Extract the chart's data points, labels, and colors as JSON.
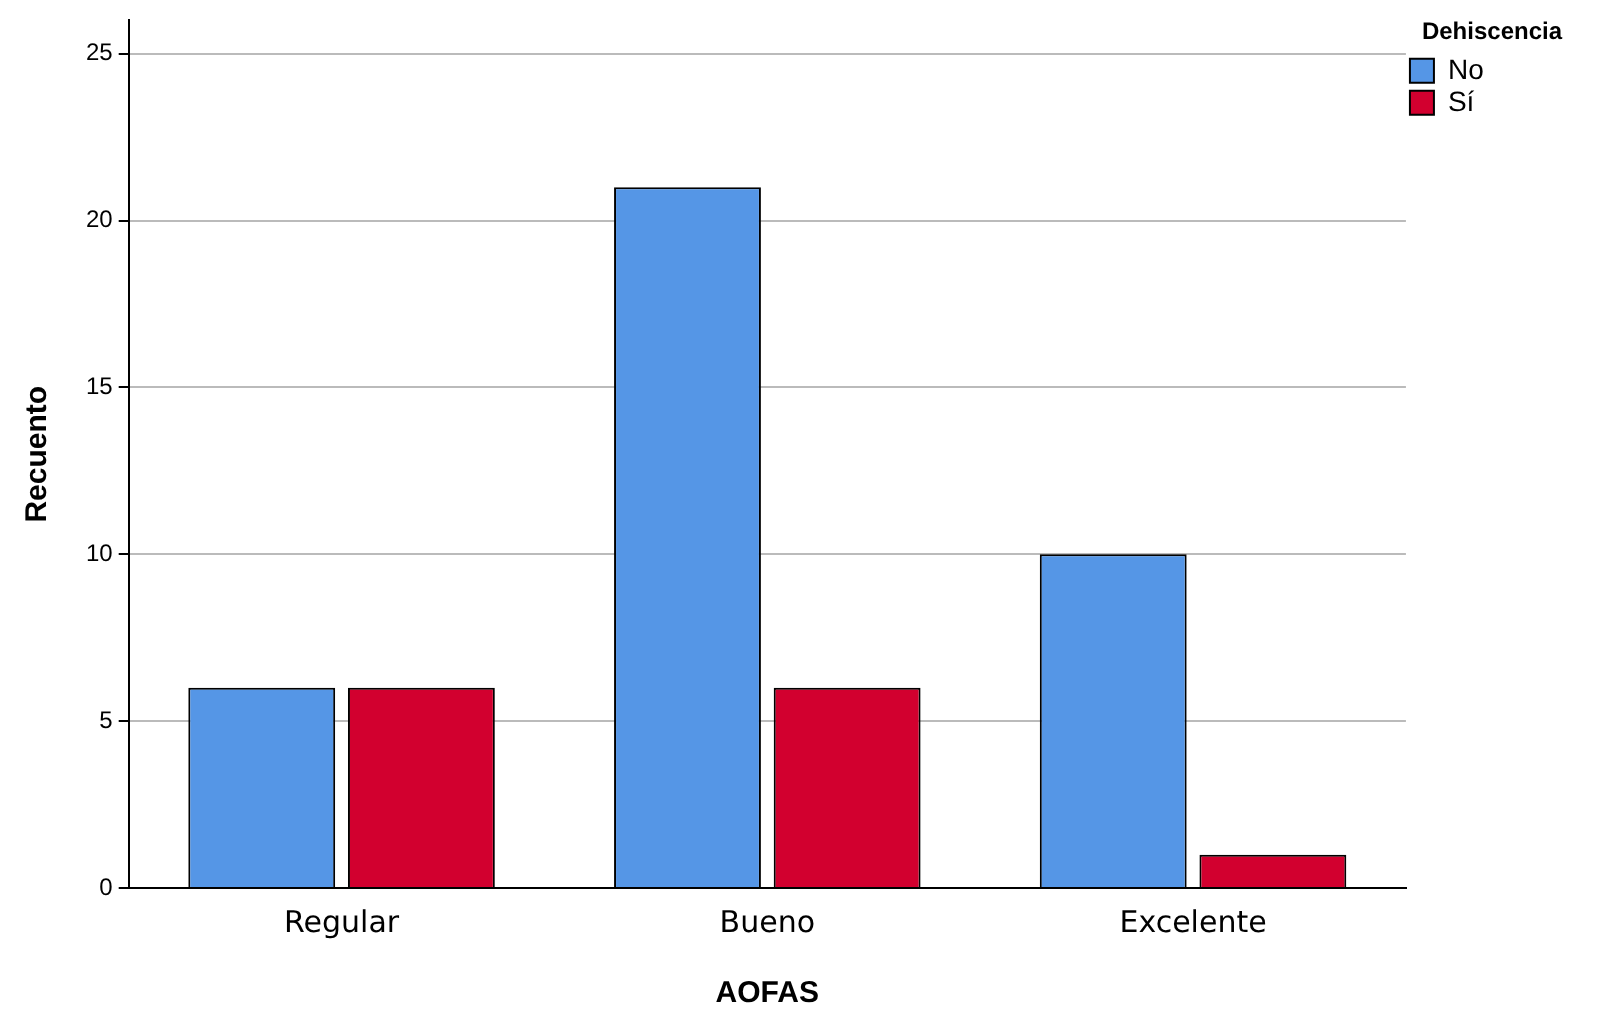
{
  "chart_data": {
    "type": "bar",
    "xlabel": "AOFAS",
    "ylabel": "Recuento",
    "legend_title": "Dehiscencia",
    "categories": [
      "Regular",
      "Bueno",
      "Excelente"
    ],
    "series": [
      {
        "name": "No",
        "color": "#5596e6",
        "values": [
          6,
          21,
          10
        ]
      },
      {
        "name": "Sí",
        "color": "#d2002f",
        "values": [
          6,
          6,
          1
        ]
      }
    ],
    "ylim": [
      0,
      26
    ],
    "yticks": [
      0,
      5,
      10,
      15,
      20,
      25
    ],
    "grid": "y",
    "legend": "top right"
  }
}
